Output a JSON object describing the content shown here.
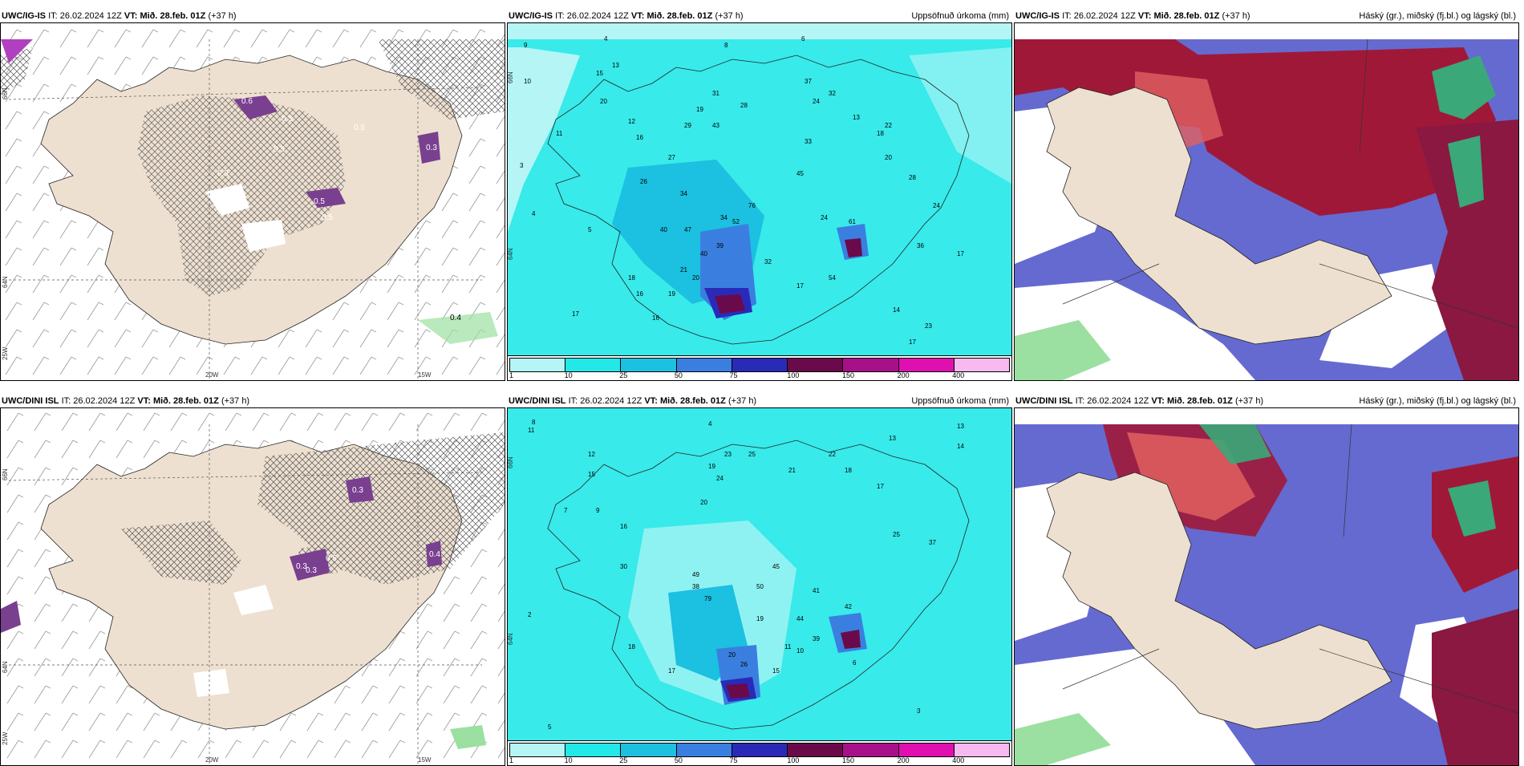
{
  "panels": [
    {
      "id": "ig-is-clouds",
      "model": "UWC/IG-IS",
      "it_label": "IT:",
      "it_value": "26.02.2024 12Z",
      "vt_label": "VT:",
      "vt_value": "Mið. 28.feb. 01Z",
      "lead": "(+37 h)",
      "right_label": "",
      "bottom_labels": [
        "20W",
        "15W"
      ],
      "side_labels": [
        "66N",
        "64N",
        "25W"
      ],
      "map_labels": [
        "0.6",
        "0.5",
        "0.3",
        "0.4",
        "0.3",
        "0.5",
        "0.5",
        "0.3",
        "0.5"
      ]
    },
    {
      "id": "ig-is-precip",
      "model": "UWC/IG-IS",
      "it_label": "IT:",
      "it_value": "26.02.2024 12Z",
      "vt_label": "VT:",
      "vt_value": "Mið. 28.feb. 01Z",
      "lead": "(+37 h)",
      "right_label": "Uppsöfnuð úrkoma (mm)",
      "legend_ticks": [
        "1",
        "10",
        "25",
        "50",
        "75",
        "100",
        "150",
        "200",
        "400"
      ],
      "side_labels": [
        "66N",
        "64N"
      ],
      "map_labels": [
        "9",
        "4",
        "6",
        "8",
        "15",
        "11",
        "13",
        "10",
        "12",
        "20",
        "16",
        "26",
        "19",
        "29",
        "43",
        "31",
        "28",
        "27",
        "37",
        "24",
        "32",
        "33",
        "13",
        "18",
        "20",
        "34",
        "45",
        "52",
        "47",
        "40",
        "39",
        "76",
        "34",
        "61",
        "54",
        "19",
        "16",
        "17",
        "23",
        "22",
        "17",
        "36",
        "14",
        "28",
        "24",
        "32",
        "17",
        "24",
        "40",
        "21",
        "20",
        "18",
        "16",
        "17",
        "4",
        "5",
        "3"
      ]
    },
    {
      "id": "ig-is-cloudlayers",
      "model": "UWC/IG-IS",
      "it_label": "IT:",
      "it_value": "26.02.2024 12Z",
      "vt_label": "VT:",
      "vt_value": "Mið. 28.feb. 01Z",
      "lead": "(+37 h)",
      "right_label": "Háský (gr.), miðský (fj.bl.) og lágský (bl.)"
    },
    {
      "id": "dini-clouds",
      "model": "UWC/DINI ISL",
      "it_label": "IT:",
      "it_value": "26.02.2024 12Z",
      "vt_label": "VT:",
      "vt_value": "Mið. 28.feb. 01Z",
      "lead": "(+37 h)",
      "right_label": "",
      "bottom_labels": [
        "20W",
        "15W"
      ],
      "side_labels": [
        "66N",
        "64N",
        "25W"
      ],
      "map_labels": [
        "0.3",
        "0.3",
        "0.5",
        "0.3",
        "0.4"
      ]
    },
    {
      "id": "dini-precip",
      "model": "UWC/DINI ISL",
      "it_label": "IT:",
      "it_value": "26.02.2024 12Z",
      "vt_label": "VT:",
      "vt_value": "Mið. 28.feb. 01Z",
      "lead": "(+37 h)",
      "right_label": "Uppsöfnuð úrkoma (mm)",
      "legend_ticks": [
        "1",
        "10",
        "25",
        "50",
        "75",
        "100",
        "150",
        "200",
        "400"
      ],
      "side_labels": [
        "66N",
        "64N"
      ],
      "map_labels": [
        "8",
        "11",
        "4",
        "2",
        "7",
        "13",
        "12",
        "15",
        "16",
        "9",
        "23",
        "19",
        "25",
        "24",
        "22",
        "20",
        "18",
        "21",
        "17",
        "13",
        "14",
        "30",
        "25",
        "37",
        "49",
        "45",
        "50",
        "38",
        "41",
        "79",
        "44",
        "42",
        "39",
        "20",
        "26",
        "11",
        "10",
        "15",
        "19",
        "17",
        "18",
        "5",
        "6",
        "3"
      ]
    },
    {
      "id": "dini-cloudlayers",
      "model": "UWC/DINI ISL",
      "it_label": "IT:",
      "it_value": "26.02.2024 12Z",
      "vt_label": "VT:",
      "vt_value": "Mið. 28.feb. 01Z",
      "lead": "(+37 h)",
      "right_label": "Háský (gr.), miðský (fj.bl.) og lágský (bl.)"
    }
  ],
  "colors": {
    "land": "#eee0d0",
    "precip_scale": [
      "#b5f5f5",
      "#22e8e8",
      "#1cc0e0",
      "#3a7fe0",
      "#2a2ab8",
      "#6a0a4a",
      "#a8108a",
      "#e010b0",
      "#f8b8f0"
    ],
    "high_cloud": "#3aa878",
    "mid_cloud": "#a01838",
    "low_cloud": "#4a50c8",
    "mid_cloud_light": "#e06060",
    "purple": "#7a4090"
  }
}
